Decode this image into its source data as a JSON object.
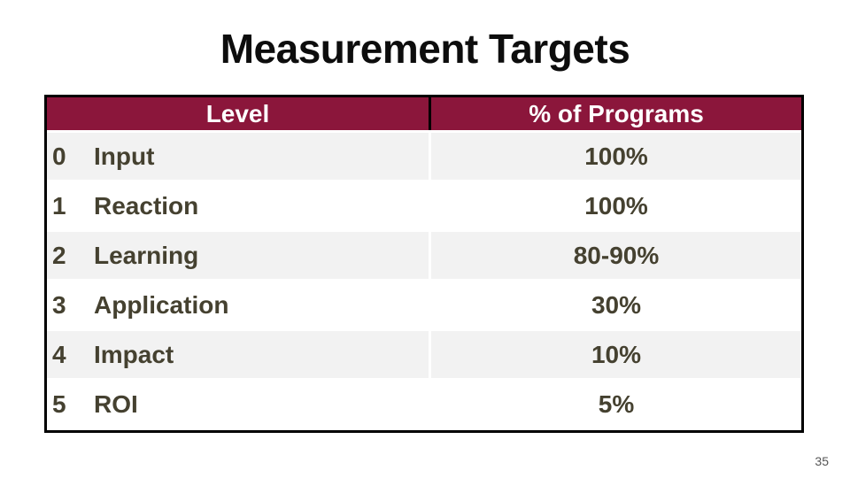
{
  "slide": {
    "title": "Measurement Targets",
    "page_number": "35"
  },
  "table": {
    "columns": {
      "level": "Level",
      "percent": "% of Programs"
    },
    "rows": [
      {
        "num": "0",
        "label": "Input",
        "percent": "100%"
      },
      {
        "num": "1",
        "label": "Reaction",
        "percent": "100%"
      },
      {
        "num": "2",
        "label": "Learning",
        "percent": "80-90%"
      },
      {
        "num": "3",
        "label": "Application",
        "percent": "30%"
      },
      {
        "num": "4",
        "label": "Impact",
        "percent": "10%"
      },
      {
        "num": "5",
        "label": "ROI",
        "percent": "5%"
      }
    ]
  },
  "colors": {
    "header_bg": "#8B163B",
    "header_text": "#FFFFFF",
    "body_text": "#454130",
    "row_alt_bg": "#F2F2F2",
    "border": "#000000",
    "title_text": "#0D0D0D",
    "page_number_text": "#555555"
  }
}
